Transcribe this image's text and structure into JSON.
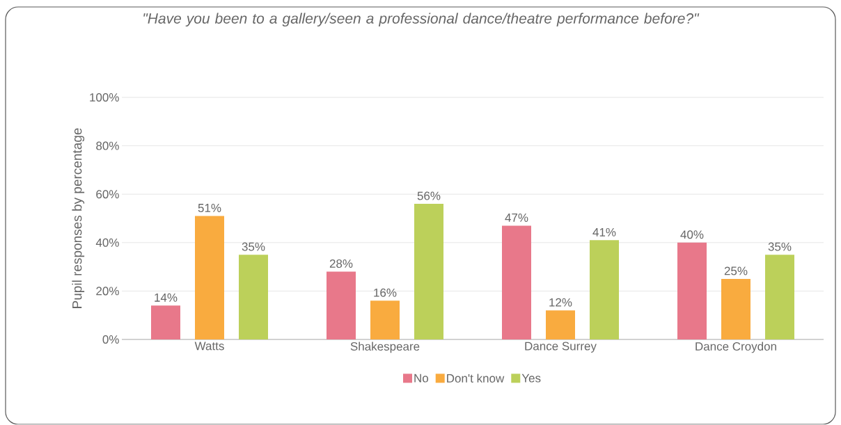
{
  "chart_data": {
    "type": "bar",
    "title": "\"Have you been to a gallery/seen a professional dance/theatre performance before?\"",
    "ylabel": "Pupil responses by percentage",
    "categories": [
      "Watts",
      "Shakespeare",
      "Dance Surrey",
      "Dance Croydon"
    ],
    "series": [
      {
        "name": "No",
        "color": "#e8788a",
        "values": [
          14,
          28,
          47,
          40
        ],
        "value_labels": [
          "14%",
          "28%",
          "47%",
          "40%"
        ]
      },
      {
        "name": "Don't know",
        "color": "#f9ab3f",
        "values": [
          51,
          16,
          12,
          25
        ],
        "value_labels": [
          "51%",
          "16%",
          "12%",
          "25%"
        ]
      },
      {
        "name": "Yes",
        "color": "#bcd05a",
        "values": [
          35,
          56,
          41,
          35
        ],
        "value_labels": [
          "35%",
          "56%",
          "41%",
          "35%"
        ]
      }
    ],
    "ylim": [
      0,
      100
    ],
    "yticks": [
      {
        "value": 0,
        "label": "0%"
      },
      {
        "value": 20,
        "label": "20%"
      },
      {
        "value": 40,
        "label": "40%"
      },
      {
        "value": 60,
        "label": "60%"
      },
      {
        "value": 80,
        "label": "80%"
      },
      {
        "value": 100,
        "label": "100%"
      }
    ],
    "grid": "y",
    "legend": "bottom"
  }
}
